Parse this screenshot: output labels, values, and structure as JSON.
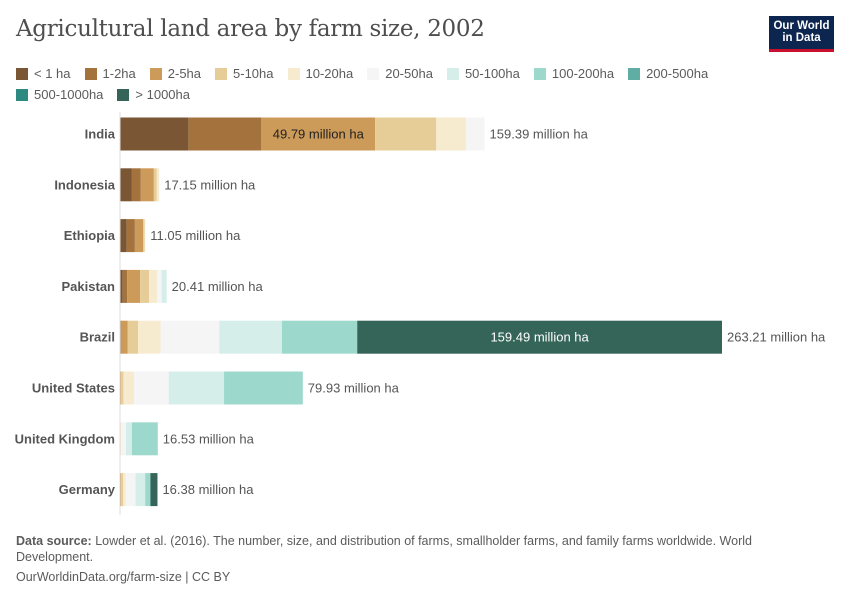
{
  "title": "Agricultural land area by farm size, 2002",
  "logo": {
    "line1": "Our World",
    "line2": "in Data"
  },
  "footer": {
    "source_label": "Data source:",
    "source_text": "Lowder et al. (2016). The number, size, and distribution of farms, smallholder farms, and family farms worldwide. World Development.",
    "url": "OurWorldinData.org/farm-size | CC BY"
  },
  "chart_data": {
    "type": "bar",
    "orientation": "horizontal",
    "stacked": true,
    "unit": "million ha",
    "legend_position": "top",
    "categories": [
      "India",
      "Indonesia",
      "Ethiopia",
      "Pakistan",
      "Brazil",
      "United States",
      "United Kingdom",
      "Germany"
    ],
    "totals": [
      "159.39 million ha",
      "17.15 million ha",
      "11.05 million ha",
      "20.41 million ha",
      "263.21 million ha",
      "79.93 million ha",
      "16.53 million ha",
      "16.38 million ha"
    ],
    "inline_labels": [
      {
        "category": "India",
        "series": "2-5ha",
        "text": "49.79 million ha"
      },
      {
        "category": "Brazil",
        "series": "> 1000ha",
        "text": "159.49 million ha"
      }
    ],
    "series": [
      {
        "name": "< 1 ha",
        "color": "#7a5634",
        "values": [
          29.9,
          5.2,
          2.9,
          1.2,
          0.3,
          0,
          0,
          0
        ]
      },
      {
        "name": "1-2ha",
        "color": "#a3723d",
        "values": [
          31.9,
          3.9,
          3.6,
          1.9,
          0.3,
          0,
          0,
          0
        ]
      },
      {
        "name": "2-5ha",
        "color": "#cc9a59",
        "values": [
          49.79,
          5.7,
          3.6,
          5.7,
          2.8,
          0.5,
          0,
          0.5
        ]
      },
      {
        "name": "5-10ha",
        "color": "#e6cd97",
        "values": [
          26.7,
          1.3,
          0.7,
          3.9,
          4.5,
          1.0,
          0.2,
          0.9
        ]
      },
      {
        "name": "10-20ha",
        "color": "#f7ebcf",
        "values": [
          13.1,
          1.05,
          0.25,
          3.5,
          9.8,
          4.6,
          0.4,
          1.0
        ]
      },
      {
        "name": "20-50ha",
        "color": "#f5f5f5",
        "values": [
          8.0,
          0,
          0,
          2.0,
          25.72,
          15.2,
          2.0,
          4.4
        ]
      },
      {
        "name": "50-100ha",
        "color": "#d5eeea",
        "values": [
          0,
          0,
          0,
          2.21,
          27.4,
          24.2,
          2.6,
          4.2
        ]
      },
      {
        "name": "100-200ha",
        "color": "#9dd8cc",
        "values": [
          0,
          0,
          0,
          0,
          32.9,
          34.43,
          11.33,
          2.3
        ]
      },
      {
        "name": "200-500ha",
        "color": "#5fada3",
        "values": [
          0,
          0,
          0,
          0,
          0,
          0,
          0,
          0
        ]
      },
      {
        "name": "500-1000ha",
        "color": "#2e8a80",
        "values": [
          0,
          0,
          0,
          0,
          0,
          0,
          0,
          0
        ]
      },
      {
        "name": "> 1000ha",
        "color": "#356458",
        "values": [
          0,
          0,
          0,
          0,
          159.49,
          0,
          0,
          3.08
        ]
      }
    ]
  }
}
